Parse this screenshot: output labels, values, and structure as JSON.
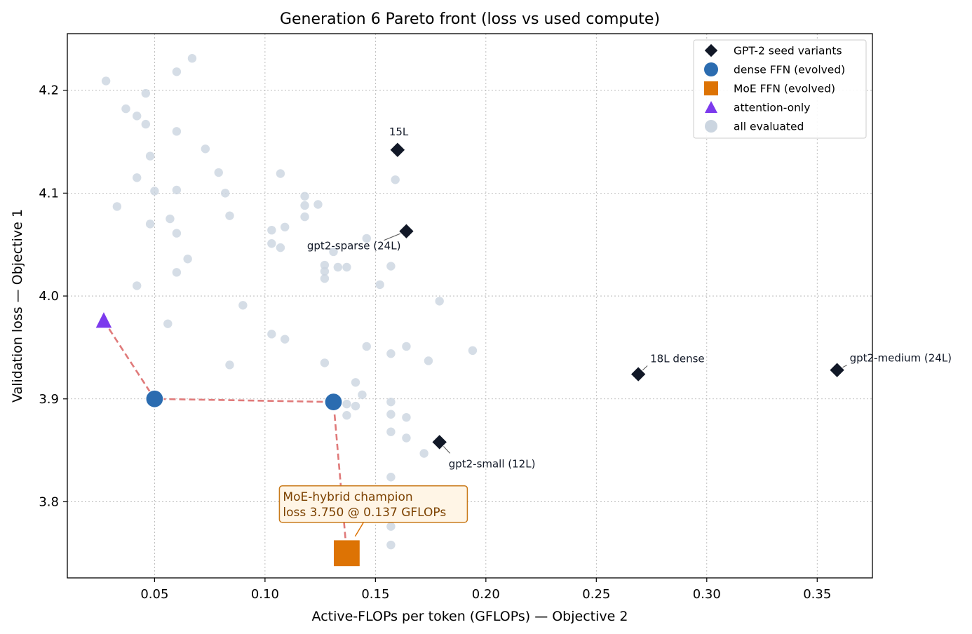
{
  "chart_data": {
    "type": "scatter",
    "title": "Generation 6 Pareto front (loss vs used compute)",
    "xlabel": "Active-FLOPs per token (GFLOPs)  — Objective 2",
    "ylabel": "Validation loss  — Objective 1",
    "xlim": [
      0.0105,
      0.375
    ],
    "ylim": [
      3.726,
      4.255
    ],
    "xticks": [
      0.05,
      0.1,
      0.15,
      0.2,
      0.25,
      0.3,
      0.35
    ],
    "xtick_labels": [
      "0.05",
      "0.10",
      "0.15",
      "0.20",
      "0.25",
      "0.30",
      "0.35"
    ],
    "yticks": [
      3.8,
      3.9,
      4.0,
      4.1,
      4.2
    ],
    "ytick_labels": [
      "3.8",
      "3.9",
      "4.0",
      "4.1",
      "4.2"
    ],
    "grid": true,
    "legend_position": "top-right",
    "colors": {
      "seed": "#111827",
      "dense": "#2b6cb0",
      "moe": "#dd7304",
      "attention": "#7c3aed",
      "evaluated": "#cbd5e0",
      "pareto_line": "#e07a7a",
      "callout_border": "#c97a1a",
      "callout_fill": "#fff5e6"
    },
    "series": [
      {
        "key": "seed",
        "name": "GPT-2 seed variants",
        "marker": "diamond",
        "points": [
          {
            "x": 0.16,
            "y": 4.142,
            "label": "15L"
          },
          {
            "x": 0.164,
            "y": 4.063,
            "label": "gpt2-sparse (24L)"
          },
          {
            "x": 0.179,
            "y": 3.858,
            "label": "gpt2-small (12L)"
          },
          {
            "x": 0.269,
            "y": 3.924,
            "label": "18L dense"
          },
          {
            "x": 0.359,
            "y": 3.928,
            "label": "gpt2-medium (24L)"
          }
        ]
      },
      {
        "key": "dense",
        "name": "dense FFN (evolved)",
        "marker": "circle",
        "points": [
          {
            "x": 0.05,
            "y": 3.9
          },
          {
            "x": 0.131,
            "y": 3.897
          }
        ]
      },
      {
        "key": "moe",
        "name": "MoE FFN (evolved)",
        "marker": "square",
        "points": [
          {
            "x": 0.137,
            "y": 3.75
          }
        ]
      },
      {
        "key": "attention",
        "name": "attention-only",
        "marker": "triangle",
        "points": [
          {
            "x": 0.027,
            "y": 3.976
          }
        ]
      },
      {
        "key": "evaluated",
        "name": "all evaluated",
        "marker": "circle",
        "points": [
          {
            "x": 0.028,
            "y": 4.209
          },
          {
            "x": 0.046,
            "y": 4.197
          },
          {
            "x": 0.06,
            "y": 4.218
          },
          {
            "x": 0.067,
            "y": 4.231
          },
          {
            "x": 0.037,
            "y": 4.182
          },
          {
            "x": 0.042,
            "y": 4.175
          },
          {
            "x": 0.046,
            "y": 4.167
          },
          {
            "x": 0.06,
            "y": 4.16
          },
          {
            "x": 0.073,
            "y": 4.143
          },
          {
            "x": 0.048,
            "y": 4.136
          },
          {
            "x": 0.042,
            "y": 4.115
          },
          {
            "x": 0.079,
            "y": 4.12
          },
          {
            "x": 0.107,
            "y": 4.119
          },
          {
            "x": 0.159,
            "y": 4.113
          },
          {
            "x": 0.05,
            "y": 4.102
          },
          {
            "x": 0.06,
            "y": 4.103
          },
          {
            "x": 0.082,
            "y": 4.1
          },
          {
            "x": 0.118,
            "y": 4.097
          },
          {
            "x": 0.118,
            "y": 4.088
          },
          {
            "x": 0.124,
            "y": 4.089
          },
          {
            "x": 0.033,
            "y": 4.087
          },
          {
            "x": 0.084,
            "y": 4.078
          },
          {
            "x": 0.118,
            "y": 4.077
          },
          {
            "x": 0.057,
            "y": 4.075
          },
          {
            "x": 0.048,
            "y": 4.07
          },
          {
            "x": 0.109,
            "y": 4.067
          },
          {
            "x": 0.103,
            "y": 4.064
          },
          {
            "x": 0.06,
            "y": 4.061
          },
          {
            "x": 0.146,
            "y": 4.056
          },
          {
            "x": 0.103,
            "y": 4.051
          },
          {
            "x": 0.107,
            "y": 4.047
          },
          {
            "x": 0.131,
            "y": 4.043
          },
          {
            "x": 0.065,
            "y": 4.036
          },
          {
            "x": 0.127,
            "y": 4.03
          },
          {
            "x": 0.133,
            "y": 4.028
          },
          {
            "x": 0.137,
            "y": 4.028
          },
          {
            "x": 0.157,
            "y": 4.029
          },
          {
            "x": 0.127,
            "y": 4.024
          },
          {
            "x": 0.06,
            "y": 4.023
          },
          {
            "x": 0.127,
            "y": 4.017
          },
          {
            "x": 0.042,
            "y": 4.01
          },
          {
            "x": 0.152,
            "y": 4.011
          },
          {
            "x": 0.179,
            "y": 3.995
          },
          {
            "x": 0.09,
            "y": 3.991
          },
          {
            "x": 0.056,
            "y": 3.973
          },
          {
            "x": 0.103,
            "y": 3.963
          },
          {
            "x": 0.109,
            "y": 3.958
          },
          {
            "x": 0.146,
            "y": 3.951
          },
          {
            "x": 0.164,
            "y": 3.951
          },
          {
            "x": 0.194,
            "y": 3.947
          },
          {
            "x": 0.157,
            "y": 3.944
          },
          {
            "x": 0.174,
            "y": 3.937
          },
          {
            "x": 0.127,
            "y": 3.935
          },
          {
            "x": 0.084,
            "y": 3.933
          },
          {
            "x": 0.141,
            "y": 3.916
          },
          {
            "x": 0.144,
            "y": 3.904
          },
          {
            "x": 0.157,
            "y": 3.897
          },
          {
            "x": 0.137,
            "y": 3.895
          },
          {
            "x": 0.141,
            "y": 3.893
          },
          {
            "x": 0.157,
            "y": 3.885
          },
          {
            "x": 0.137,
            "y": 3.884
          },
          {
            "x": 0.164,
            "y": 3.882
          },
          {
            "x": 0.157,
            "y": 3.868
          },
          {
            "x": 0.164,
            "y": 3.862
          },
          {
            "x": 0.172,
            "y": 3.847
          },
          {
            "x": 0.157,
            "y": 3.824
          },
          {
            "x": 0.157,
            "y": 3.776
          },
          {
            "x": 0.157,
            "y": 3.758
          }
        ]
      }
    ],
    "pareto_front": [
      {
        "x": 0.027,
        "y": 3.976
      },
      {
        "x": 0.05,
        "y": 3.9
      },
      {
        "x": 0.131,
        "y": 3.897
      },
      {
        "x": 0.137,
        "y": 3.75
      }
    ],
    "callout": {
      "line1": "MoE-hybrid champion",
      "line2": "loss 3.750 @ 0.137 GFLOPs",
      "target": {
        "x": 0.137,
        "y": 3.75
      }
    }
  }
}
